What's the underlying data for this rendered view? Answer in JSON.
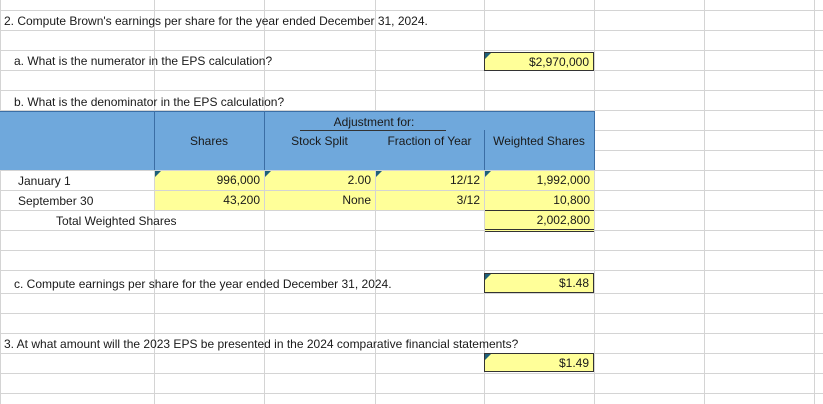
{
  "colors": {
    "header_fill": "#6fa8dc",
    "input_fill": "#ffff99",
    "tick_mark": "#1f5f7a"
  },
  "q2": {
    "title": "2. Compute Brown's earnings per share for the year ended December 31, 2024.",
    "a_label": "a. What is the numerator in the  EPS calculation?",
    "a_answer": "$2,970,000",
    "b_label": "b. What is the denominator in the EPS calculation?",
    "table": {
      "headers": {
        "shares": "Shares",
        "adjustment_for": "Adjustment for:",
        "stock_split": "Stock Split",
        "fraction_of_year": "Fraction of Year",
        "weighted_shares": "Weighted Shares"
      },
      "rows": [
        {
          "date": "January 1",
          "shares": "996,000",
          "split": "2.00",
          "fraction": "12/12",
          "weighted": "1,992,000"
        },
        {
          "date": "September 30",
          "shares": "43,200",
          "split": "None",
          "fraction": "3/12",
          "weighted": "10,800"
        }
      ],
      "total_label": "Total Weighted Shares",
      "total_value": "2,002,800"
    },
    "c_label": "c. Compute earnings per share for the year ended December 31, 2024.",
    "c_answer": "$1.48"
  },
  "q3": {
    "title": "3. At what amount will the 2023 EPS be presented in the 2024 comparative financial statements?",
    "answer": "$1.49"
  }
}
